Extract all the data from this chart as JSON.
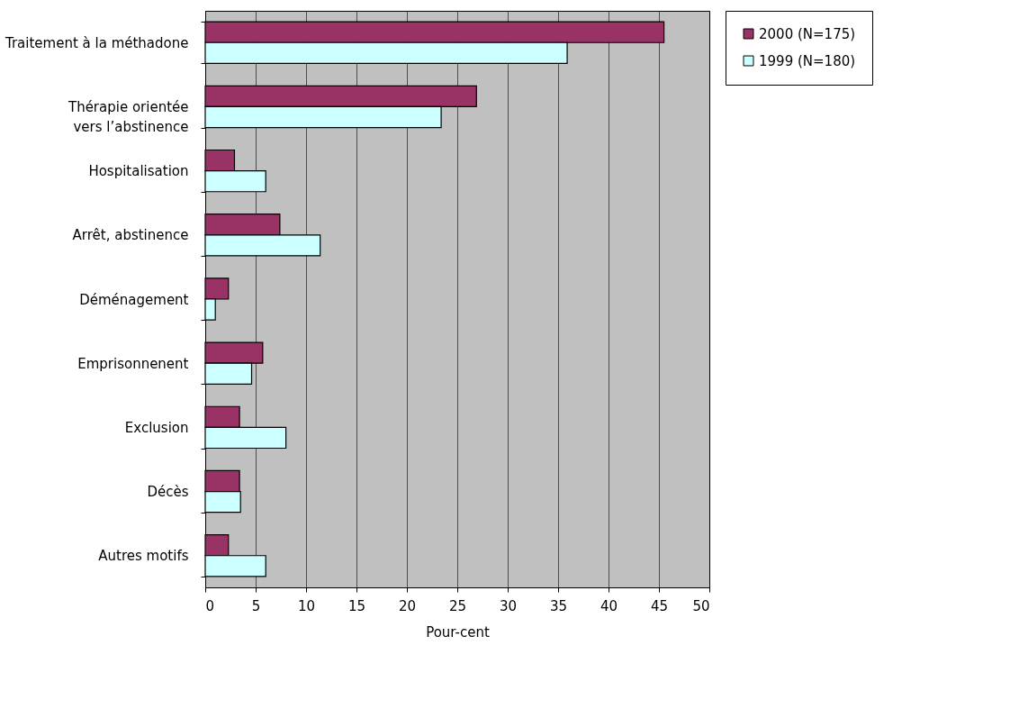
{
  "chart_data": {
    "type": "bar",
    "orientation": "horizontal",
    "xlabel": "Pour-cent",
    "categories": [
      "Traitement à la méthadone",
      "Thérapie orientée\nvers l’abstinence",
      "Hospitalisation",
      "Arrêt, abstinence",
      "Déménagement",
      "Emprisonnenent",
      "Exclusion",
      "Décès",
      "Autres motifs"
    ],
    "series": [
      {
        "name": "2000 (N=175)",
        "color": "#993366",
        "values": [
          45.5,
          26.9,
          2.9,
          7.4,
          2.3,
          5.7,
          3.4,
          3.4,
          2.3
        ]
      },
      {
        "name": "1999 (N=180)",
        "color": "#ccffff",
        "values": [
          35.9,
          23.4,
          6.0,
          11.4,
          1.0,
          4.6,
          8.0,
          3.5,
          6.0
        ]
      }
    ],
    "xlim": [
      0,
      50
    ],
    "xticks": [
      0,
      5,
      10,
      15,
      20,
      25,
      30,
      35,
      40,
      45,
      50
    ],
    "grid": "x",
    "legend": "right"
  }
}
